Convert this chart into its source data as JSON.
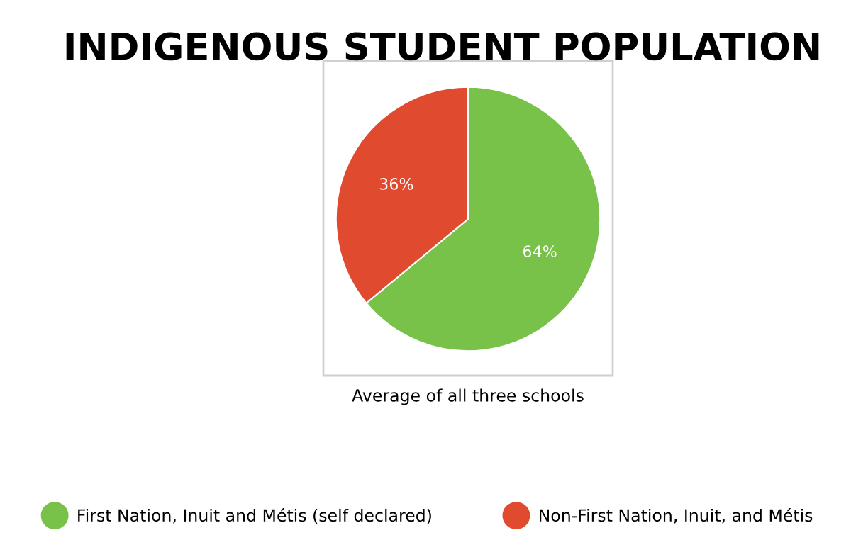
{
  "chart_data": {
    "type": "pie",
    "title": "INDIGENOUS STUDENT POPULATION",
    "categories": [
      "First Nation, Inuit and Métis (self declared)",
      "Non-First Nation, Inuit, and Métis"
    ],
    "values": [
      64,
      36
    ],
    "colors": [
      "#79c24a",
      "#e04b30"
    ],
    "value_labels": [
      "64%",
      "36%"
    ],
    "legend": "bottom",
    "annotations": [
      "Average of all three schools"
    ]
  }
}
